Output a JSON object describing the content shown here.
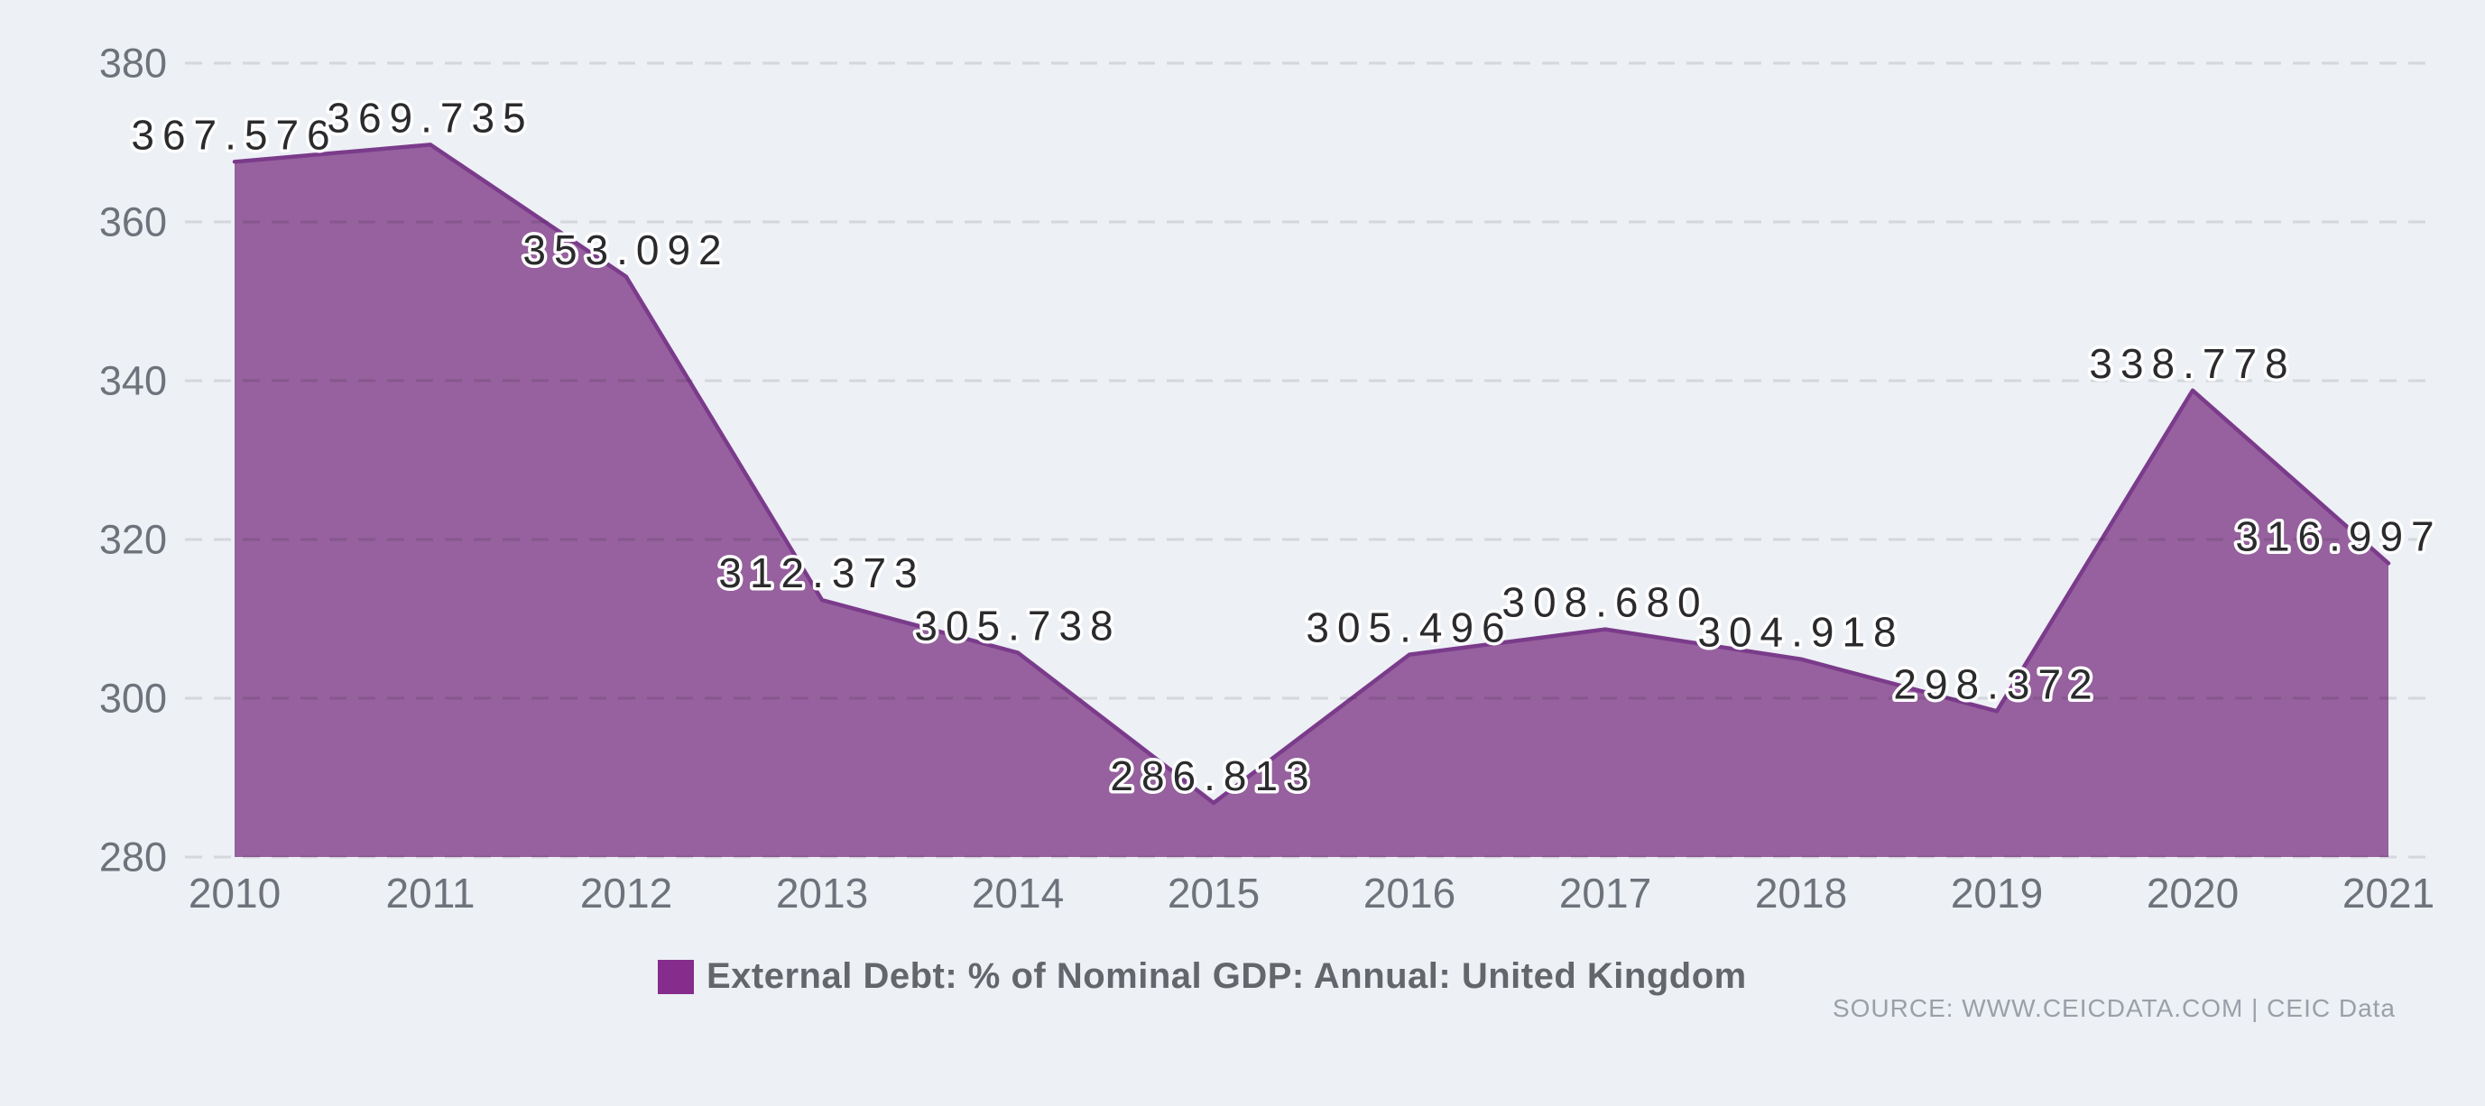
{
  "chart_data": {
    "type": "area",
    "title": "",
    "categories": [
      "2010",
      "2011",
      "2012",
      "2013",
      "2014",
      "2015",
      "2016",
      "2017",
      "2018",
      "2019",
      "2020",
      "2021"
    ],
    "series": [
      {
        "name": "External Debt: % of Nominal GDP: Annual: United Kingdom",
        "values": [
          367.576,
          369.735,
          353.092,
          312.373,
          305.738,
          286.813,
          305.496,
          308.68,
          304.918,
          298.372,
          338.778,
          316.997
        ]
      }
    ],
    "value_labels": [
      "367.576",
      "369.735",
      "353.092",
      "312.373",
      "305.738",
      "286.813",
      "305.496",
      "308.680",
      "304.918",
      "298.372",
      "338.778",
      "316.997"
    ],
    "xlabel": "",
    "ylabel": "",
    "ylim": [
      280,
      380
    ],
    "yticks": [
      280,
      300,
      320,
      340,
      360,
      380
    ],
    "grid": "horizontal-dashed",
    "legend_position": "bottom",
    "colors": {
      "background": "#EDF0F5",
      "area_fill": "#96619E",
      "area_stroke": "#7B3B8B",
      "legend_swatch": "#852C8C",
      "tick_label": "#6D727B",
      "data_label": "#2B2B2E",
      "data_label_halo": "#FFFFFF",
      "gridline": "rgba(0,0,0,0.10)"
    }
  },
  "legend": {
    "label": "External Debt: % of Nominal GDP: Annual: United Kingdom"
  },
  "source": {
    "text": "SOURCE: WWW.CEICDATA.COM | CEIC Data"
  }
}
